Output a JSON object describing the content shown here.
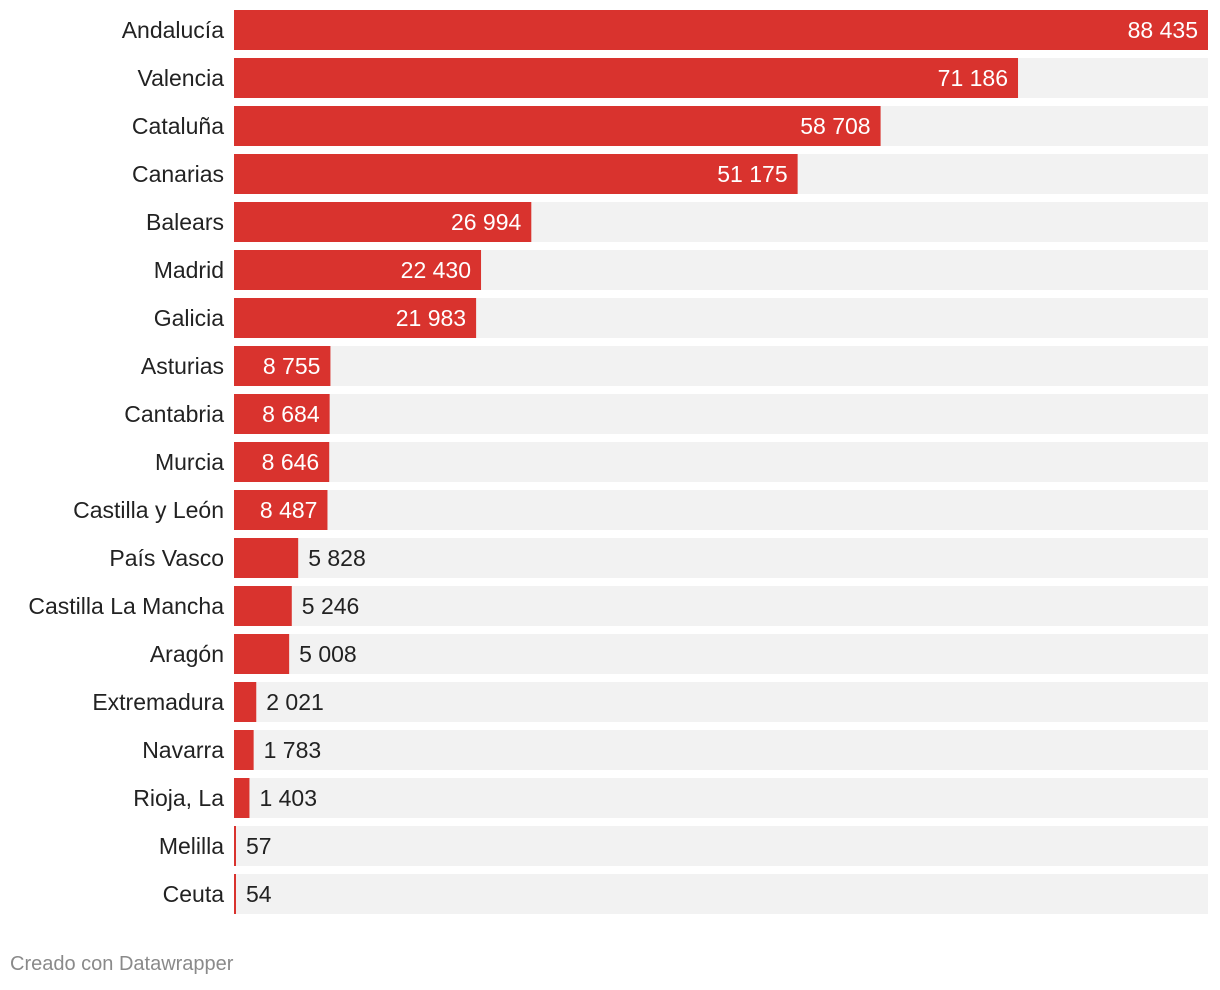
{
  "chart_data": {
    "type": "bar",
    "orientation": "horizontal",
    "title": "",
    "xlabel": "",
    "ylabel": "",
    "xlim": [
      0,
      88435
    ],
    "grid": false,
    "categories": [
      "Andalucía",
      "Valencia",
      "Cataluña",
      "Canarias",
      "Balears",
      "Madrid",
      "Galicia",
      "Asturias",
      "Cantabria",
      "Murcia",
      "Castilla y León",
      "País Vasco",
      "Castilla La Mancha",
      "Aragón",
      "Extremadura",
      "Navarra",
      "Rioja, La",
      "Melilla",
      "Ceuta"
    ],
    "values": [
      88435,
      71186,
      58708,
      51175,
      26994,
      22430,
      21983,
      8755,
      8684,
      8646,
      8487,
      5828,
      5246,
      5008,
      2021,
      1783,
      1403,
      57,
      54
    ],
    "value_labels": [
      "88 435",
      "71 186",
      "58 708",
      "51 175",
      "26 994",
      "22 430",
      "21 983",
      "8 755",
      "8 684",
      "8 646",
      "8 487",
      "5 828",
      "5 246",
      "5 008",
      "2 021",
      "1 783",
      "1 403",
      "57",
      "54"
    ]
  },
  "colors": {
    "bar": "#d9332e",
    "track": "#f2f2f2",
    "label_text": "#222222",
    "value_inside": "#ffffff",
    "value_outside": "#222222"
  },
  "footer": {
    "credit": "Creado con Datawrapper"
  }
}
